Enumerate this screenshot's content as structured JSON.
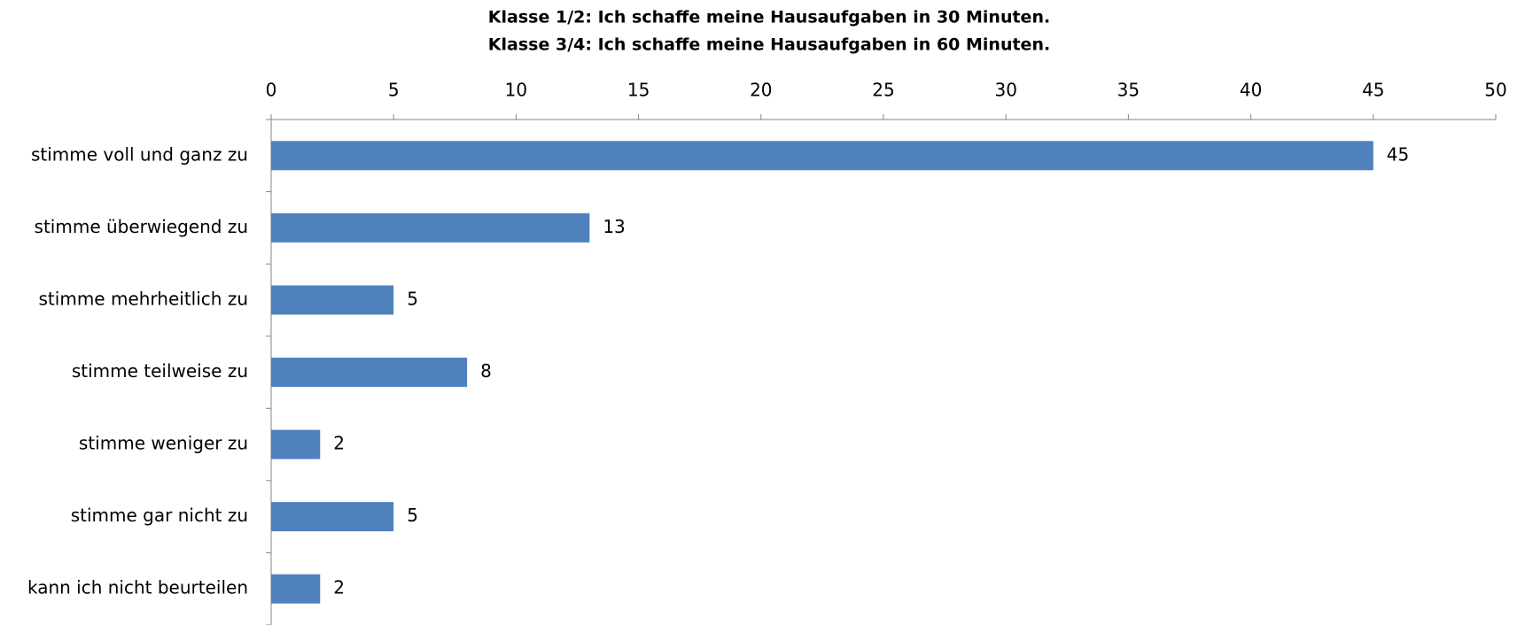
{
  "chart_data": {
    "type": "bar",
    "orientation": "horizontal",
    "title": "Klasse 1/2: Ich schaffe meine Hausaufgaben in 30 Minuten.",
    "subtitle": "Klasse 3/4: Ich schaffe meine Hausaufgaben in 60 Minuten.",
    "categories": [
      "stimme voll und ganz zu",
      "stimme überwiegend zu",
      "stimme mehrheitlich zu",
      "stimme teilweise zu",
      "stimme weniger zu",
      "stimme gar nicht zu",
      "kann ich nicht beurteilen"
    ],
    "values": [
      45,
      13,
      5,
      8,
      2,
      5,
      2
    ],
    "color": "#4f81bd",
    "xlim": [
      0,
      50
    ],
    "xticks": [
      0,
      5,
      10,
      15,
      20,
      25,
      30,
      35,
      40,
      45,
      50
    ],
    "grid": false
  }
}
